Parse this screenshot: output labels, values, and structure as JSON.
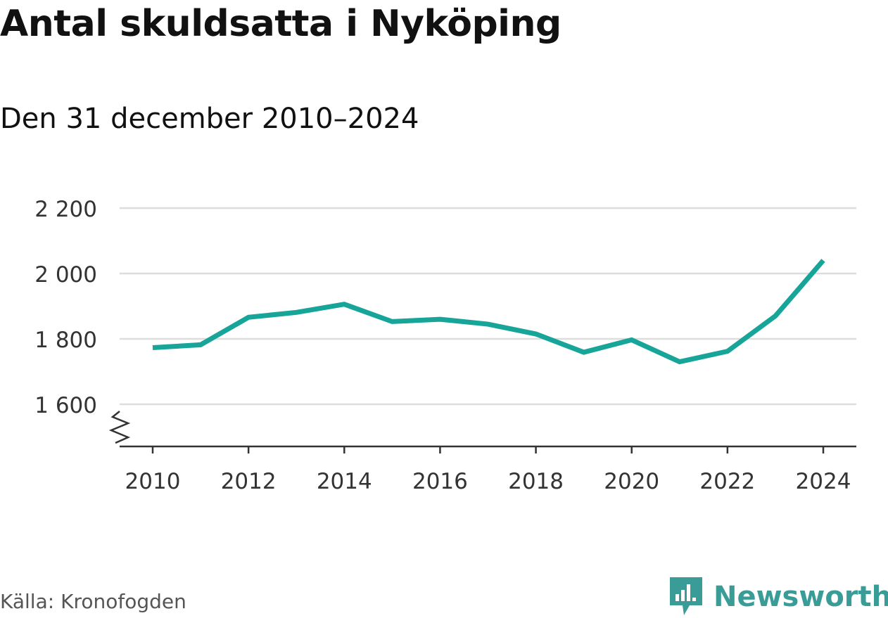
{
  "title": "Antal skuldsatta i Nyköping",
  "subtitle": "Den 31 december 2010–2024",
  "source": "Källa: Kronofogden",
  "brand": {
    "name": "Newsworthy",
    "icon": "newsworthy-logo-icon",
    "color": "#3a9c96"
  },
  "colors": {
    "line": "#17a59a",
    "grid": "#dddddd",
    "axis": "#333333"
  },
  "chart_data": {
    "type": "line",
    "title": "Antal skuldsatta i Nyköping",
    "subtitle": "Den 31 december 2010–2024",
    "xlabel": "",
    "ylabel": "",
    "x": [
      2010,
      2011,
      2012,
      2013,
      2014,
      2015,
      2016,
      2017,
      2018,
      2019,
      2020,
      2021,
      2022,
      2023,
      2024
    ],
    "x_ticks": [
      "2010",
      "2012",
      "2014",
      "2016",
      "2018",
      "2020",
      "2022",
      "2024"
    ],
    "y_ticks": [
      "1 600",
      "1 800",
      "2 000",
      "2 200"
    ],
    "ylim": [
      1470,
      2200
    ],
    "broken_axis": true,
    "grid": true,
    "series": [
      {
        "values": [
          1773,
          1782,
          1866,
          1881,
          1906,
          1853,
          1860,
          1845,
          1815,
          1759,
          1797,
          1730,
          1762,
          1870,
          2040
        ]
      }
    ]
  }
}
